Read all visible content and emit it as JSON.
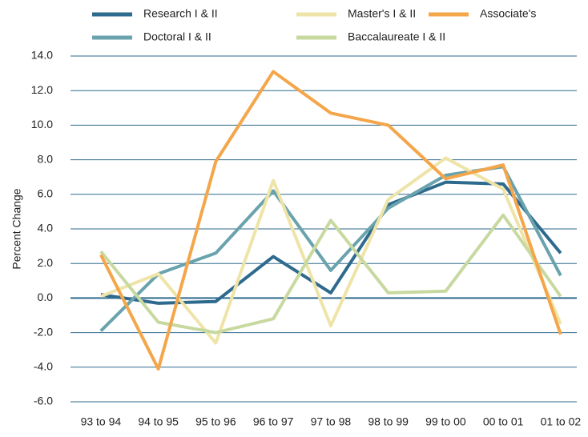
{
  "chart_data": {
    "type": "line",
    "y_label": "Percent Change",
    "categories": [
      "93 to 94",
      "94 to 95",
      "95 to 96",
      "96 to 97",
      "97 to 98",
      "98 to 99",
      "99 to 00",
      "00 to 01",
      "01 to 02"
    ],
    "series": [
      {
        "name": "Research I & II",
        "color": "#2e6a8e",
        "values": [
          0.2,
          -0.3,
          -0.2,
          2.4,
          0.3,
          5.4,
          6.7,
          6.6,
          2.6
        ]
      },
      {
        "name": "Doctoral I & II",
        "color": "#6aa3ad",
        "values": [
          -1.9,
          1.4,
          2.6,
          6.2,
          1.6,
          5.2,
          7.1,
          7.6,
          1.3
        ]
      },
      {
        "name": "Master's I & II",
        "color": "#efe4a8",
        "values": [
          0.1,
          1.4,
          -2.6,
          6.8,
          -1.6,
          5.7,
          8.1,
          6.3,
          -1.5
        ]
      },
      {
        "name": "Baccalaureate I & II",
        "color": "#c8d9a0",
        "values": [
          2.7,
          -1.4,
          -2.0,
          -1.2,
          4.5,
          0.3,
          0.4,
          4.8,
          0.1
        ]
      },
      {
        "name": "Associate's",
        "color": "#f4a64a",
        "values": [
          2.5,
          -4.1,
          7.9,
          13.1,
          10.7,
          10.0,
          6.9,
          7.7,
          -2.1
        ]
      }
    ],
    "ylim": [
      -6,
      14
    ],
    "yticks": [
      {
        "value": -6,
        "label": "-6.0"
      },
      {
        "value": -4,
        "label": "-4.0"
      },
      {
        "value": -2,
        "label": "-2.0"
      },
      {
        "value": 0,
        "label": "0.0"
      },
      {
        "value": 2,
        "label": "2.0"
      },
      {
        "value": 4,
        "label": "4.0"
      },
      {
        "value": 6,
        "label": "6.0"
      },
      {
        "value": 8,
        "label": "8.0"
      },
      {
        "value": 10,
        "label": "10.0"
      },
      {
        "value": 12,
        "label": "12.0"
      },
      {
        "value": 14,
        "label": "14.0"
      }
    ],
    "grid": true
  }
}
